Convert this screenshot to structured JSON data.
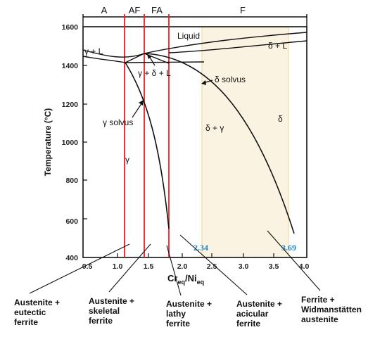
{
  "regions": [
    {
      "id": "A",
      "label": "A"
    },
    {
      "id": "AF",
      "label": "AF"
    },
    {
      "id": "FA",
      "label": "FA"
    },
    {
      "id": "F",
      "label": "F"
    }
  ],
  "axes": {
    "x_label": "Cr",
    "x_label_sub1": "eq",
    "x_label_mid": "/Ni",
    "x_label_sub2": "eq",
    "y_label": "Temperature (°C)",
    "x_ticks": [
      "0.5",
      "1.0",
      "1.5",
      "2.0",
      "2.5",
      "3.0",
      "3.5",
      "4.0"
    ],
    "y_ticks": [
      "400",
      "600",
      "800",
      "1000",
      "1200",
      "1400",
      "1600"
    ]
  },
  "phase_labels": {
    "liquid": "Liquid",
    "gamma_l": "γ + L",
    "delta_l": "δ + L",
    "gamma_delta_l": "γ + δ + L",
    "delta_solvus": "δ solvus",
    "gamma_solvus": "γ solvus",
    "delta_gamma": "δ + γ",
    "delta": "δ",
    "gamma": "γ"
  },
  "markers": {
    "left_value": "2.34",
    "right_value": "3.69"
  },
  "callouts": [
    {
      "id": "austenite-eutectic",
      "lines": [
        "Austenite +",
        "eutectic",
        "ferrite"
      ]
    },
    {
      "id": "austenite-skeletal",
      "lines": [
        "Austenite +",
        "skeletal",
        "ferrite"
      ]
    },
    {
      "id": "austenite-lathy",
      "lines": [
        "Austenite +",
        "lathy",
        "ferrite"
      ]
    },
    {
      "id": "austenite-acicular",
      "lines": [
        "Austenite +",
        "acicular",
        "ferrite"
      ]
    },
    {
      "id": "ferrite-widmanstatten",
      "lines": [
        "Ferrite +",
        "Widmanstätten",
        "austenite"
      ]
    }
  ],
  "colors": {
    "boundary_red": "#e0222b",
    "highlight_fill": "#fbf3e1",
    "highlight_edge": "#f5d9a0",
    "marker_blue": "#1e88c8"
  }
}
